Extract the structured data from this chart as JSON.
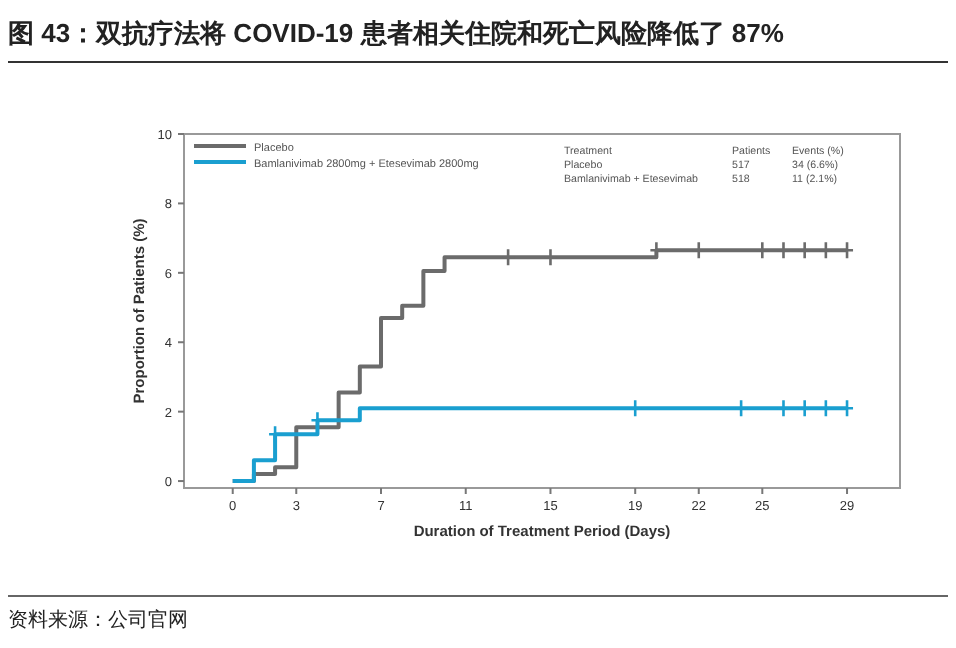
{
  "chart_data": {
    "type": "step",
    "title": "图 43：双抗疗法将 COVID-19 患者相关住院和死亡风险降低了 87%",
    "xlabel": "Duration of Treatment Period (Days)",
    "ylabel": "Proportion of Patients (%)",
    "xlim": [
      -2.3,
      31.5
    ],
    "xticks": [
      0,
      3,
      7,
      11,
      15,
      19,
      22,
      25,
      29
    ],
    "ylim": [
      -0.2,
      10
    ],
    "yticks": [
      0,
      2,
      4,
      6,
      8,
      10
    ],
    "grid": false,
    "legend": "top left",
    "series": [
      {
        "name": "Placebo",
        "color": "#6b6b6b",
        "x": [
          0,
          1,
          2,
          3,
          5,
          6,
          7,
          8,
          9,
          10,
          20,
          29
        ],
        "values": [
          0,
          0.2,
          0.4,
          1.55,
          2.55,
          3.3,
          4.7,
          5.05,
          6.05,
          6.45,
          6.65,
          6.65
        ]
      },
      {
        "name": "Bamlanivimab 2800mg + Etesevimab 2800mg",
        "color": "#1a9fd0",
        "x": [
          0,
          1,
          2,
          4,
          6,
          29
        ],
        "values": [
          0,
          0.6,
          1.35,
          1.75,
          2.1,
          2.1
        ]
      },
      {
        "color": "#6b6b6b",
        "type": "scatter",
        "marker": "cross",
        "x": [
          13,
          15,
          20,
          22,
          25,
          26,
          27,
          28,
          29
        ],
        "values": [
          6.45,
          6.45,
          6.65,
          6.65,
          6.65,
          6.65,
          6.65,
          6.65,
          6.65
        ]
      },
      {
        "color": "#1a9fd0",
        "type": "scatter",
        "marker": "cross",
        "x": [
          2,
          4,
          19,
          24,
          26,
          27,
          28,
          29
        ],
        "values": [
          1.35,
          1.75,
          2.1,
          2.1,
          2.1,
          2.1,
          2.1,
          2.1
        ]
      }
    ],
    "annotations": [
      "Treatment",
      "Patients",
      "Events (%)",
      "Placebo",
      "517",
      "34 (6.6%)",
      "Bamlanivimab + Etesevimab",
      "518",
      "11 (2.1%)",
      "资料来源：公司官网"
    ]
  }
}
